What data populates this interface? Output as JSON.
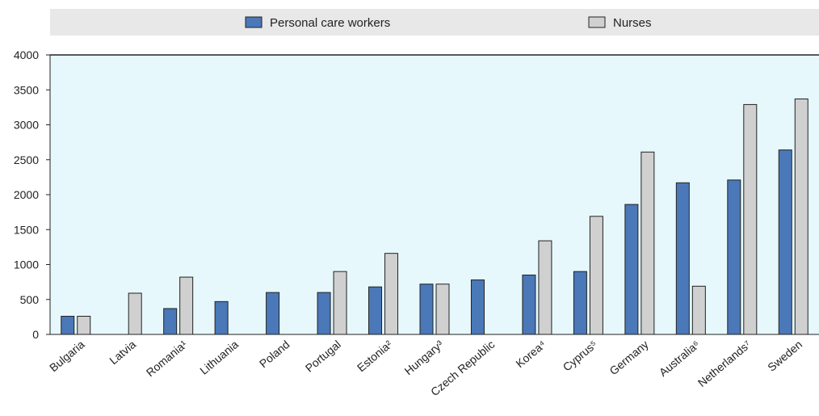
{
  "chart_data": {
    "type": "bar",
    "title": "",
    "xlabel": "",
    "ylabel": "",
    "ylim": [
      0,
      4000
    ],
    "yticks": [
      0,
      500,
      1000,
      1500,
      2000,
      2500,
      3000,
      3500,
      4000
    ],
    "grid": false,
    "legend_position": "top",
    "categories": [
      "Bulgaria",
      "Latvia",
      "Romania¹",
      "Lithuania",
      "Poland",
      "Portugal",
      "Estonia²",
      "Hungary³",
      "Czech Republic",
      "Korea⁴",
      "Cyprus⁵",
      "Germany",
      "Australia⁶",
      "Netherlands⁷",
      "Sweden"
    ],
    "series": [
      {
        "name": "Personal care workers",
        "color": "#4a78b8",
        "values": [
          260,
          null,
          370,
          470,
          600,
          600,
          680,
          720,
          780,
          850,
          900,
          1860,
          2170,
          2210,
          2640
        ]
      },
      {
        "name": "Nurses",
        "color": "#d0d0d0",
        "values": [
          260,
          590,
          820,
          null,
          null,
          900,
          1160,
          720,
          null,
          1340,
          1690,
          2610,
          690,
          3290,
          3370
        ]
      }
    ]
  },
  "colors": {
    "plot_background": "#e6f8fc",
    "legend_background": "#e8e8e8",
    "bar_stroke": "#222222"
  }
}
